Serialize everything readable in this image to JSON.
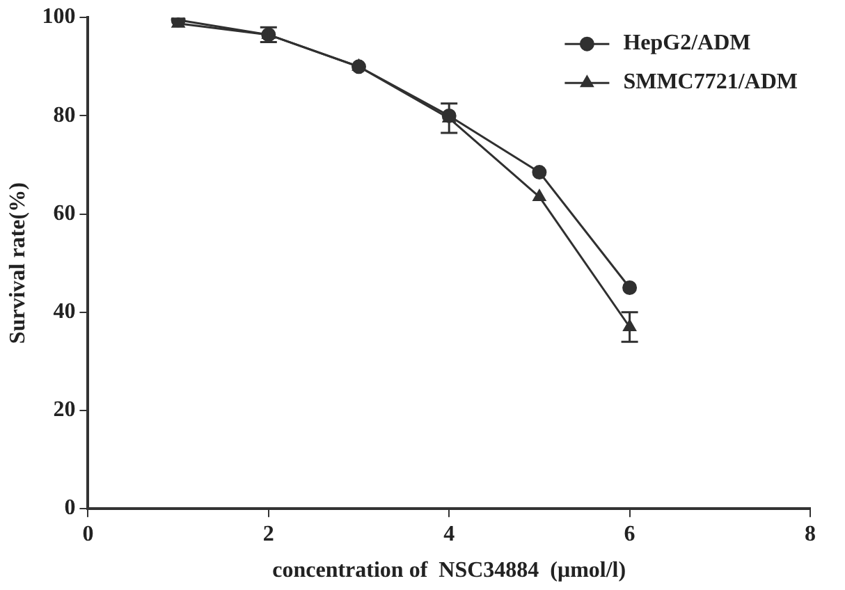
{
  "chart_data": {
    "type": "line",
    "xlabel": "concentration of  NSC34884  (μmol/l)",
    "ylabel": "Survival rate(%)",
    "x": [
      1,
      2,
      3,
      4,
      5,
      6
    ],
    "xlim": [
      0,
      8
    ],
    "xticks": [
      0,
      2,
      4,
      6,
      8
    ],
    "ylim": [
      0,
      100
    ],
    "yticks": [
      0,
      20,
      40,
      60,
      80,
      100
    ],
    "grid": false,
    "legend": "top right",
    "line_style": "solid",
    "series": [
      {
        "name": "HepG2/ADM",
        "color": "#303030",
        "marker": "circle",
        "values": [
          99.5,
          96.5,
          90,
          80,
          68.5,
          45
        ]
      },
      {
        "name": "SMMC7721/ADM",
        "color": "#303030",
        "marker": "triangle",
        "values": [
          98.8,
          96.5,
          90,
          79.5,
          63.5,
          37
        ],
        "errors": [
          null,
          1.5,
          null,
          3,
          null,
          3
        ]
      }
    ]
  }
}
